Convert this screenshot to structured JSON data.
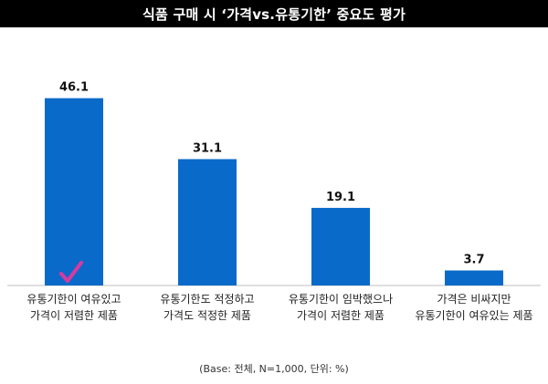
{
  "header": {
    "title": "식품 구매 시 ‘가격vs.유통기한’ 중요도 평가"
  },
  "chart_data": {
    "type": "bar",
    "categories": [
      [
        "유통기한이 여유있고",
        "가격이 저렴한 제품"
      ],
      [
        "유통기한도 적정하고",
        "가격도 적정한 제품"
      ],
      [
        "유통기한이 임박했으나",
        "가격이 저렴한 제품"
      ],
      [
        "가격은 비싸지만",
        "유통기한이 여유있는 제품"
      ]
    ],
    "values": [
      46.1,
      31.1,
      19.1,
      3.7
    ],
    "value_labels": [
      "46.1",
      "31.1",
      "19.1",
      "3.7"
    ],
    "ylim": [
      0,
      55
    ],
    "bar_color": "#0a6ac9",
    "highlight": {
      "category_index": 0,
      "icon": "checkmark-icon",
      "color": "#d63aa0"
    },
    "grid": false,
    "legend": "none"
  },
  "footnote": "(Base: 전체, N=1,000, 단위: %)"
}
